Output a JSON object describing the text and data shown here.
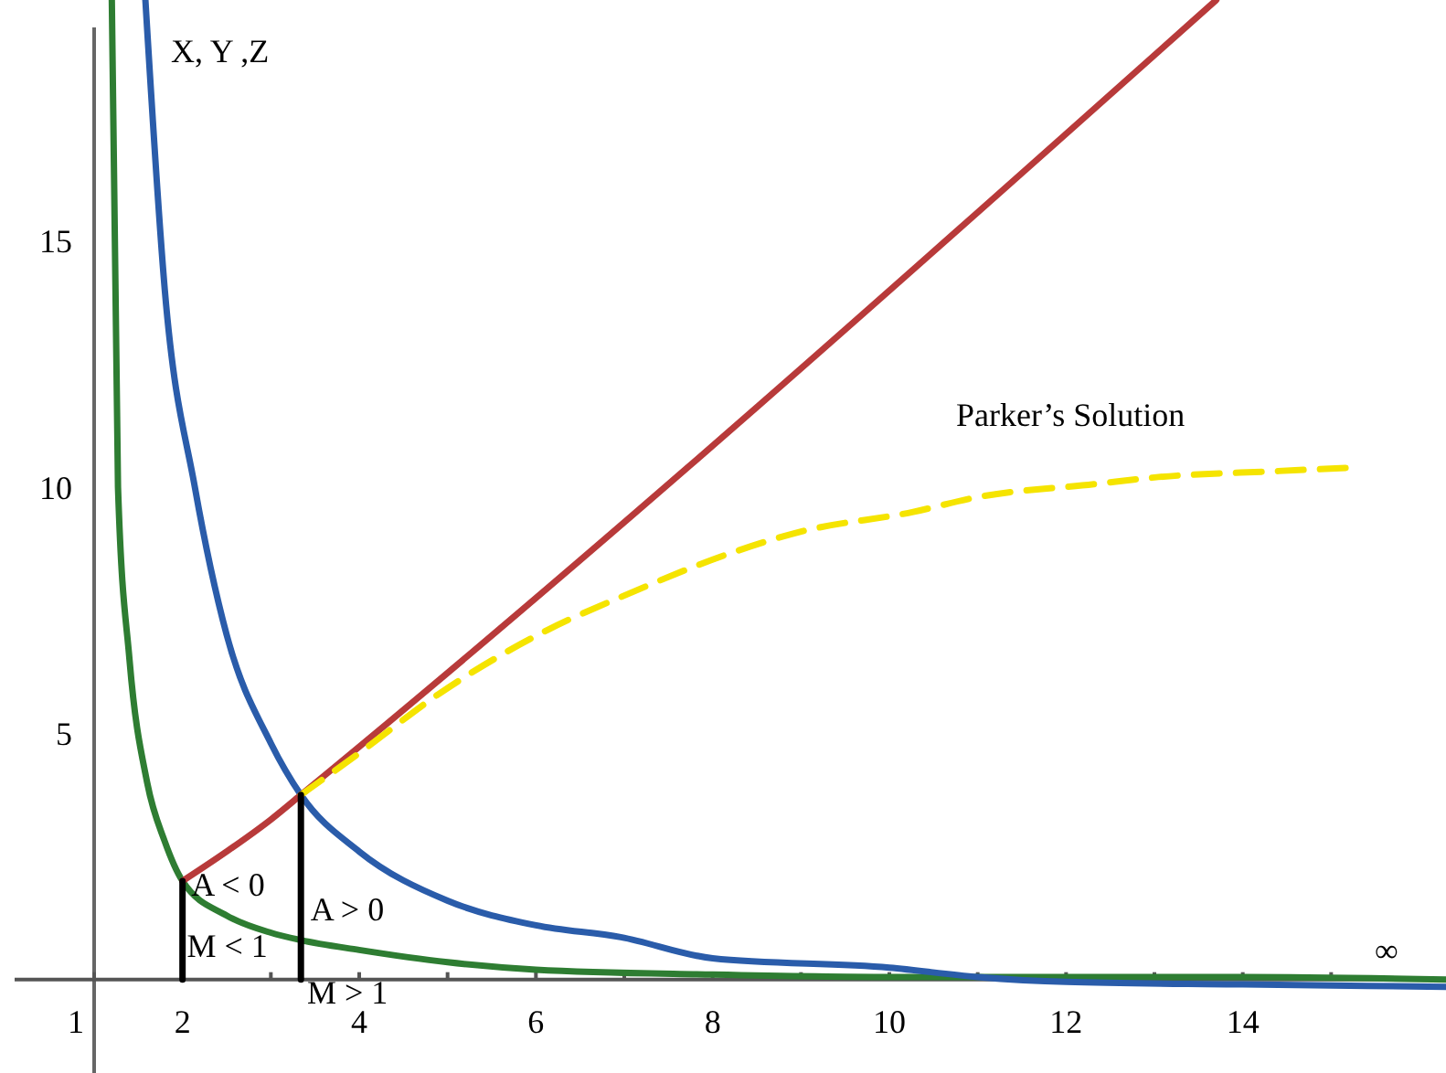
{
  "chart_data": {
    "type": "line",
    "ylabel": "X, Y ,Z",
    "xlim": [
      0.1,
      16.3
    ],
    "ylim": [
      -1.9,
      19.9
    ],
    "xticks": [
      1,
      2,
      {
        "value": 3,
        "label": null
      },
      4,
      {
        "value": 5,
        "label": null
      },
      6,
      {
        "value": 7,
        "label": null
      },
      8,
      {
        "value": 9,
        "label": null
      },
      10,
      {
        "value": 11,
        "label": null
      },
      12,
      {
        "value": 13,
        "label": null
      },
      14,
      {
        "value": 15,
        "label": null
      }
    ],
    "yticks": [
      {
        "value": 0,
        "label": null
      },
      5,
      10,
      15
    ],
    "grid": false,
    "marker": "none",
    "series": [
      {
        "color": "#2e7d32",
        "x": [
          1.2,
          1.27,
          1.4,
          1.6,
          1.8,
          2,
          2.5,
          3,
          3.34,
          4,
          5,
          6,
          8,
          10,
          11,
          12,
          14,
          16.3
        ],
        "values": [
          19.9,
          10,
          6.5,
          4.0,
          2.8,
          2.0,
          1.3,
          0.95,
          0.8,
          0.6,
          0.35,
          0.2,
          0.1,
          0.05,
          0.05,
          0.05,
          0.05,
          0
        ]
      },
      {
        "color": "#2a5caa",
        "x": [
          1.58,
          1.8,
          2.14,
          2.5,
          3,
          3.34,
          4,
          5,
          6,
          6.96,
          8,
          10,
          11,
          12,
          14,
          16.3
        ],
        "values": [
          19.9,
          14,
          10,
          7,
          4.8,
          3.75,
          2.6,
          1.6,
          1.1,
          0.86,
          0.43,
          0.24,
          0.05,
          -0.05,
          -0.1,
          -0.15
        ]
      },
      {
        "color": "#b83a3a",
        "x": [
          2,
          2.5,
          3,
          3.34,
          13.7
        ],
        "values": [
          2.0,
          2.6,
          3.25,
          3.75,
          19.9
        ]
      },
      {
        "color": "#f5e400",
        "line_style": "dashed",
        "x": [
          3.34,
          4,
          4.9,
          6.13,
          7,
          8.2,
          9,
          10.27,
          11,
          12.35,
          13,
          14.4,
          15.24
        ],
        "values": [
          3.75,
          4.6,
          5.8,
          7.1,
          7.8,
          8.66,
          9.1,
          9.5,
          9.8,
          10.07,
          10.2,
          10.33,
          10.4
        ]
      },
      {
        "color": "#000000",
        "x": [
          2,
          2
        ],
        "values": [
          0,
          2.0
        ]
      },
      {
        "color": "#000000",
        "x": [
          3.34,
          3.34
        ],
        "values": [
          0,
          3.75
        ]
      }
    ],
    "annotations": [
      "Parker’s Solution",
      {
        "text": "A < 0",
        "x": 2.1,
        "y": 1.7
      },
      {
        "text": "M < 1",
        "x": 2.05,
        "y": 0.45
      },
      {
        "text": "A > 0",
        "x": 3.45,
        "y": 1.2
      },
      "M > 1",
      "∞"
    ]
  }
}
